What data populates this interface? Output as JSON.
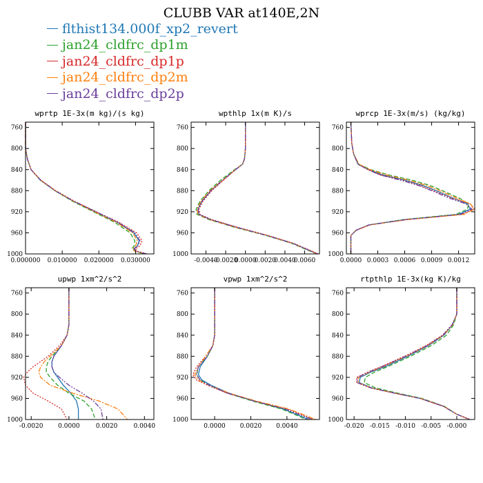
{
  "title": "CLUBB VAR at140E,2N",
  "legend": [
    {
      "label": "flthist134.000f_xp2_revert",
      "color": "#1f77b4"
    },
    {
      "label": "jan24_cldfrc_dp1m",
      "color": "#2ca02c"
    },
    {
      "label": "jan24_cldfrc_dp1p",
      "color": "#d62728"
    },
    {
      "label": "jan24_cldfrc_dp2m",
      "color": "#ff7f0e"
    },
    {
      "label": "jan24_cldfrc_dp2p",
      "color": "#6a3d9a"
    }
  ],
  "chart_data": [
    {
      "type": "line",
      "title": "wprtp  1E-3x(m kg)/(s kg)",
      "ylim": [
        1000,
        750
      ],
      "yticks": [
        "760",
        "800",
        "840",
        "880",
        "920",
        "960",
        "1000"
      ],
      "xlim": [
        0,
        0.035
      ],
      "xticks": [
        [
          0,
          "0.000000"
        ],
        [
          0.01,
          "0.010000"
        ],
        [
          0.02,
          "0.020000"
        ],
        [
          0.03,
          "0.030000"
        ]
      ],
      "y": [
        750,
        800,
        820,
        840,
        860,
        880,
        900,
        920,
        940,
        960,
        975,
        985,
        990,
        995,
        1000
      ],
      "series": [
        {
          "color": "#1f77b4",
          "dash": "solid",
          "values": [
            0,
            0,
            0.0005,
            0.0015,
            0.004,
            0.008,
            0.013,
            0.019,
            0.025,
            0.0295,
            0.031,
            0.0305,
            0.0295,
            0.03,
            0.033
          ]
        },
        {
          "color": "#2ca02c",
          "dash": "6 3",
          "values": [
            0,
            0,
            0.0005,
            0.0015,
            0.004,
            0.008,
            0.0128,
            0.0185,
            0.0243,
            0.0285,
            0.0298,
            0.0296,
            0.029,
            0.0298,
            0.0325
          ]
        },
        {
          "color": "#d62728",
          "dash": "2 2",
          "values": [
            0,
            0,
            0.0005,
            0.0015,
            0.0042,
            0.0082,
            0.0133,
            0.0193,
            0.0255,
            0.0303,
            0.0318,
            0.0312,
            0.03,
            0.0304,
            0.0332
          ]
        },
        {
          "color": "#ff7f0e",
          "dash": "7 2 2 2",
          "values": [
            0,
            0,
            0.0005,
            0.0015,
            0.0041,
            0.0081,
            0.0131,
            0.0188,
            0.0248,
            0.0292,
            0.0305,
            0.03,
            0.0292,
            0.0299,
            0.0327
          ]
        },
        {
          "color": "#6a3d9a",
          "dash": "7 2 2 2 2 2",
          "values": [
            0,
            0,
            0.0005,
            0.0015,
            0.0041,
            0.0081,
            0.0132,
            0.0192,
            0.0252,
            0.0298,
            0.0312,
            0.0306,
            0.0297,
            0.0302,
            0.033
          ]
        }
      ]
    },
    {
      "type": "line",
      "title": "wpthlp  1x(m K)/s",
      "ylim": [
        1000,
        750
      ],
      "yticks": [
        "760",
        "800",
        "840",
        "880",
        "920",
        "960",
        "1000"
      ],
      "xlim": [
        -0.0055,
        0.0075
      ],
      "xticks": [
        [
          -0.004,
          "-0.0040"
        ],
        [
          -0.002,
          "-0.0020"
        ],
        [
          0,
          "0.0000"
        ],
        [
          0.002,
          "0.0020"
        ],
        [
          0.004,
          "0.0040"
        ],
        [
          0.006,
          "0.0060"
        ]
      ],
      "y": [
        750,
        800,
        820,
        830,
        840,
        860,
        880,
        900,
        915,
        925,
        935,
        950,
        965,
        980,
        1000
      ],
      "series": [
        {
          "color": "#1f77b4",
          "dash": "solid",
          "values": [
            0,
            0,
            -0.0001,
            -0.0003,
            -0.001,
            -0.0023,
            -0.0035,
            -0.0044,
            -0.0048,
            -0.0047,
            -0.0035,
            -0.0008,
            0.0022,
            0.0048,
            0.0073
          ]
        },
        {
          "color": "#2ca02c",
          "dash": "6 3",
          "values": [
            0,
            0,
            -0.0001,
            -0.0003,
            -0.0011,
            -0.0025,
            -0.0037,
            -0.0046,
            -0.005,
            -0.0049,
            -0.0037,
            -0.001,
            0.0021,
            0.0047,
            0.0072
          ]
        },
        {
          "color": "#d62728",
          "dash": "2 2",
          "values": [
            0,
            0,
            -0.0001,
            -0.0003,
            -0.001,
            -0.0022,
            -0.0034,
            -0.0043,
            -0.0047,
            -0.0046,
            -0.0034,
            -0.0007,
            0.0023,
            0.0049,
            0.0074
          ]
        },
        {
          "color": "#ff7f0e",
          "dash": "7 2 2 2",
          "values": [
            0,
            0,
            -0.0001,
            -0.0003,
            -0.001,
            -0.0023,
            -0.0036,
            -0.0045,
            -0.0049,
            -0.0048,
            -0.0036,
            -0.0009,
            0.0022,
            0.0048,
            0.0073
          ]
        },
        {
          "color": "#6a3d9a",
          "dash": "7 2 2 2 2 2",
          "values": [
            0,
            0,
            -0.0001,
            -0.0003,
            -0.001,
            -0.0023,
            -0.0035,
            -0.0044,
            -0.0048,
            -0.0047,
            -0.0035,
            -0.0008,
            0.0022,
            0.0048,
            0.0073
          ]
        }
      ]
    },
    {
      "type": "line",
      "title": "wprcp  1E-3x(m/s) (kg/kg)",
      "ylim": [
        1000,
        750
      ],
      "yticks": [
        "760",
        "800",
        "840",
        "880",
        "920",
        "960",
        "1000"
      ],
      "xlim": [
        -5e-05,
        0.00138
      ],
      "xticks": [
        [
          0,
          "0.0000"
        ],
        [
          0.0003,
          "0.0003"
        ],
        [
          0.0006,
          "0.0006"
        ],
        [
          0.0009,
          "0.0009"
        ],
        [
          0.0012,
          "0.0012"
        ]
      ],
      "y": [
        750,
        790,
        810,
        830,
        840,
        850,
        860,
        870,
        880,
        895,
        905,
        915,
        925,
        935,
        945,
        955,
        965,
        980,
        1000
      ],
      "series": [
        {
          "color": "#1f77b4",
          "dash": "solid",
          "values": [
            0,
            1e-05,
            3e-05,
            8e-05,
            0.0002,
            0.00035,
            0.0006,
            0.0008,
            0.00095,
            0.00115,
            0.0013,
            0.00133,
            0.0012,
            0.0006,
            0.0002,
            6e-05,
            0,
            0,
            0
          ]
        },
        {
          "color": "#2ca02c",
          "dash": "6 3",
          "values": [
            0,
            1e-05,
            3e-05,
            9e-05,
            0.00022,
            0.00042,
            0.00068,
            0.00088,
            0.00102,
            0.00122,
            0.00131,
            0.0013,
            0.00117,
            0.00058,
            0.0002,
            6e-05,
            0,
            0,
            0
          ]
        },
        {
          "color": "#d62728",
          "dash": "2 2",
          "values": [
            0,
            1e-05,
            3e-05,
            8e-05,
            0.00019,
            0.00033,
            0.00057,
            0.00077,
            0.00092,
            0.00114,
            0.00133,
            0.00137,
            0.00124,
            0.00062,
            0.00021,
            6e-05,
            0,
            0,
            0
          ]
        },
        {
          "color": "#ff7f0e",
          "dash": "7 2 2 2",
          "values": [
            0,
            1e-05,
            3e-05,
            9e-05,
            0.00021,
            0.00039,
            0.00064,
            0.00084,
            0.00099,
            0.00119,
            0.00133,
            0.00138,
            0.00126,
            0.00063,
            0.00021,
            6e-05,
            0,
            0,
            0
          ]
        },
        {
          "color": "#6a3d9a",
          "dash": "7 2 2 2 2 2",
          "values": [
            0,
            1e-05,
            3e-05,
            8e-05,
            0.00019,
            0.00032,
            0.00055,
            0.00075,
            0.0009,
            0.00111,
            0.00128,
            0.00135,
            0.00122,
            0.00061,
            0.0002,
            6e-05,
            0,
            0,
            0
          ]
        }
      ]
    },
    {
      "type": "line",
      "title": "upwp  1xm^2/s^2",
      "ylim": [
        1000,
        750
      ],
      "yticks": [
        "760",
        "800",
        "840",
        "880",
        "920",
        "960",
        "1000"
      ],
      "xlim": [
        -0.0023,
        0.0045
      ],
      "xticks": [
        [
          -0.002,
          "-0.0020"
        ],
        [
          0,
          "0.0000"
        ],
        [
          0.002,
          "0.0020"
        ],
        [
          0.004,
          "0.0040"
        ]
      ],
      "y": [
        750,
        820,
        840,
        860,
        880,
        890,
        900,
        910,
        920,
        935,
        950,
        965,
        980,
        1000
      ],
      "series": [
        {
          "color": "#1f77b4",
          "dash": "solid",
          "values": [
            0,
            0,
            -0.0001,
            -0.0004,
            -0.0008,
            -0.0009,
            -0.0009,
            -0.0008,
            -0.0006,
            -0.0003,
            0.0001,
            0.0004,
            0.0005,
            0.0005
          ]
        },
        {
          "color": "#2ca02c",
          "dash": "6 3",
          "values": [
            0,
            0,
            -0.0001,
            -0.0004,
            -0.0009,
            -0.0011,
            -0.0012,
            -0.0012,
            -0.001,
            -0.0006,
            0,
            0.0008,
            0.0012,
            0.0014
          ]
        },
        {
          "color": "#d62728",
          "dash": "2 2",
          "values": [
            0,
            0,
            -0.0001,
            -0.0005,
            -0.0011,
            -0.0015,
            -0.0019,
            -0.0022,
            -0.0024,
            -0.0023,
            -0.0019,
            -0.0011,
            -0.0004,
            -0.0001
          ]
        },
        {
          "color": "#ff7f0e",
          "dash": "7 2 2 2",
          "values": [
            0,
            0,
            -0.0001,
            -0.0004,
            -0.001,
            -0.0013,
            -0.0015,
            -0.0016,
            -0.0015,
            -0.001,
            0.0002,
            0.0016,
            0.0026,
            0.0031
          ]
        },
        {
          "color": "#6a3d9a",
          "dash": "7 2 2 2 2 2",
          "values": [
            0,
            0,
            -0.0001,
            -0.0004,
            -0.0008,
            -0.0009,
            -0.0009,
            -0.0008,
            -0.0005,
            0,
            0.0007,
            0.0013,
            0.0017,
            0.0018
          ]
        }
      ]
    },
    {
      "type": "line",
      "title": "vpwp  1xm^2/s^2",
      "ylim": [
        1000,
        750
      ],
      "yticks": [
        "760",
        "800",
        "840",
        "880",
        "920",
        "960",
        "1000"
      ],
      "xlim": [
        -0.0013,
        0.0058
      ],
      "xticks": [
        [
          0,
          "0.0000"
        ],
        [
          0.002,
          "0.0020"
        ],
        [
          0.004,
          "0.0040"
        ]
      ],
      "y": [
        750,
        840,
        860,
        880,
        900,
        915,
        925,
        935,
        950,
        965,
        980,
        1000
      ],
      "series": [
        {
          "color": "#1f77b4",
          "dash": "solid",
          "values": [
            0,
            0,
            -0.0001,
            -0.0004,
            -0.0008,
            -0.0009,
            -0.0007,
            -0.0002,
            0.0008,
            0.0022,
            0.0038,
            0.0052
          ]
        },
        {
          "color": "#2ca02c",
          "dash": "6 3",
          "values": [
            0,
            0,
            -0.0001,
            -0.0004,
            -0.0009,
            -0.001,
            -0.0008,
            -0.0003,
            0.0007,
            0.0021,
            0.0037,
            0.0051
          ]
        },
        {
          "color": "#d62728",
          "dash": "2 2",
          "values": [
            0,
            0,
            -0.0001,
            -0.0005,
            -0.001,
            -0.0012,
            -0.001,
            -0.0004,
            0.0007,
            0.0022,
            0.004,
            0.0055
          ]
        },
        {
          "color": "#ff7f0e",
          "dash": "7 2 2 2",
          "values": [
            0,
            0,
            -0.0001,
            -0.0005,
            -0.0009,
            -0.0011,
            -0.0009,
            -0.0003,
            0.0008,
            0.0023,
            0.0041,
            0.0056
          ]
        },
        {
          "color": "#6a3d9a",
          "dash": "7 2 2 2 2 2",
          "values": [
            0,
            0,
            -0.0001,
            -0.0004,
            -0.0009,
            -0.001,
            -0.0008,
            -0.0003,
            0.0007,
            0.0022,
            0.0039,
            0.0054
          ]
        }
      ]
    },
    {
      "type": "line",
      "title": "rtpthlp  1E-3x(kg K)/kg",
      "ylim": [
        1000,
        750
      ],
      "yticks": [
        "760",
        "800",
        "840",
        "880",
        "920",
        "960",
        "1000"
      ],
      "xlim": [
        -0.0215,
        0.0035
      ],
      "xticks": [
        [
          -0.02,
          "-0.020"
        ],
        [
          -0.015,
          "-0.015"
        ],
        [
          -0.01,
          "-0.010"
        ],
        [
          -0.005,
          "-0.005"
        ],
        [
          0,
          "-0.000"
        ]
      ],
      "y": [
        750,
        800,
        820,
        840,
        860,
        880,
        900,
        910,
        920,
        930,
        940,
        950,
        960,
        975,
        990,
        1000
      ],
      "series": [
        {
          "color": "#1f77b4",
          "dash": "solid",
          "values": [
            0,
            0,
            -0.0008,
            -0.0025,
            -0.0055,
            -0.0095,
            -0.014,
            -0.0167,
            -0.0188,
            -0.019,
            -0.0165,
            -0.012,
            -0.007,
            -0.0025,
            0,
            0.0025
          ]
        },
        {
          "color": "#2ca02c",
          "dash": "6 3",
          "values": [
            0,
            0,
            -0.0006,
            -0.002,
            -0.005,
            -0.009,
            -0.0135,
            -0.016,
            -0.0178,
            -0.018,
            -0.0158,
            -0.0115,
            -0.0068,
            -0.0024,
            0,
            0.0025
          ]
        },
        {
          "color": "#d62728",
          "dash": "2 2",
          "values": [
            0,
            0,
            -0.0009,
            -0.0028,
            -0.006,
            -0.0102,
            -0.0148,
            -0.0173,
            -0.0195,
            -0.0195,
            -0.0168,
            -0.0122,
            -0.0072,
            -0.0026,
            0,
            0.0026
          ]
        },
        {
          "color": "#ff7f0e",
          "dash": "7 2 2 2",
          "values": [
            0,
            0,
            -0.0008,
            -0.0026,
            -0.0057,
            -0.0098,
            -0.0144,
            -0.017,
            -0.0191,
            -0.0192,
            -0.0166,
            -0.0121,
            -0.0071,
            -0.0025,
            0,
            0.0025
          ]
        },
        {
          "color": "#6a3d9a",
          "dash": "7 2 2 2 2 2",
          "values": [
            0,
            0,
            -0.0009,
            -0.0027,
            -0.0058,
            -0.01,
            -0.0146,
            -0.0172,
            -0.0193,
            -0.0194,
            -0.0167,
            -0.0121,
            -0.0072,
            -0.0026,
            0,
            0.0026
          ]
        }
      ]
    }
  ]
}
